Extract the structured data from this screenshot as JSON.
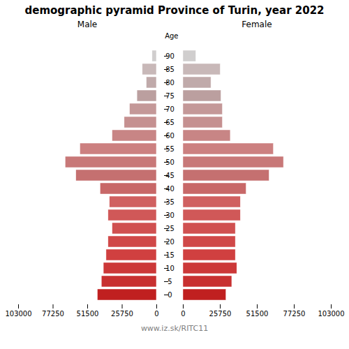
{
  "chart_data": {
    "type": "bar",
    "orientation": "horizontal",
    "title": "demographic pyramid Province of Turin, year 2022",
    "caption": "www.iz.sk/RITC11",
    "ylabel": "Age",
    "categories": [
      "0",
      "5",
      "10",
      "15",
      "20",
      "25",
      "30",
      "35",
      "40",
      "45",
      "50",
      "55",
      "60",
      "65",
      "70",
      "75",
      "80",
      "85",
      "90"
    ],
    "series": [
      {
        "name": "Male",
        "values": [
          44000,
          41000,
          39500,
          37500,
          36000,
          33000,
          36000,
          35000,
          42000,
          60000,
          68000,
          57000,
          33000,
          24000,
          20000,
          14500,
          7500,
          10500,
          3200
        ]
      },
      {
        "name": "Female",
        "values": [
          30000,
          34000,
          37500,
          36500,
          36500,
          36500,
          40000,
          40000,
          44000,
          60000,
          70000,
          63000,
          33000,
          27500,
          27500,
          26500,
          19500,
          26000,
          9000
        ]
      }
    ],
    "colors": [
      "#c02020",
      "#c83030",
      "#cc3838",
      "#d04040",
      "#d04848",
      "#d05050",
      "#d05858",
      "#d06060",
      "#c86868",
      "#c57070",
      "#c87878",
      "#cc8080",
      "#c88585",
      "#c59090",
      "#c49898",
      "#bb9f9f",
      "#c0aaaa",
      "#c8b8b8",
      "#d0cece"
    ],
    "xlim": [
      0,
      103000
    ],
    "xticks": [
      0,
      25750,
      51500,
      77250,
      103000
    ],
    "grid": false
  }
}
